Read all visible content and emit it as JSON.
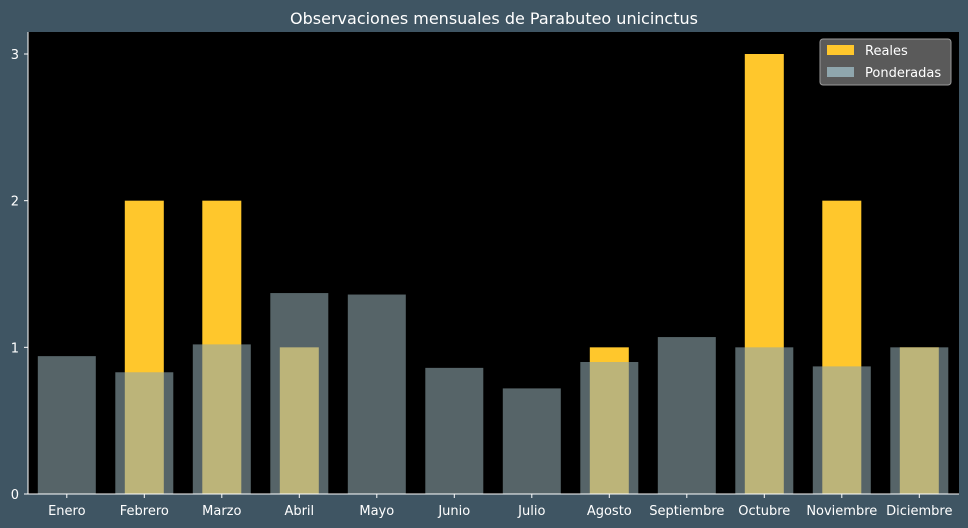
{
  "colors": {
    "background": "#3f5563",
    "plot_background": "#000000",
    "reales": "#ffc72c",
    "ponderadas": "#8fa6ad",
    "text": "#ffffff"
  },
  "chart_data": {
    "type": "bar",
    "title": "Observaciones mensuales de Parabuteo unicinctus",
    "xlabel": "",
    "ylabel": "",
    "ylim": [
      0,
      3.15
    ],
    "yticks": [
      0,
      1,
      2,
      3
    ],
    "grid": false,
    "legend_position": "top-right",
    "categories": [
      "Enero",
      "Febrero",
      "Marzo",
      "Abril",
      "Mayo",
      "Junio",
      "Julio",
      "Agosto",
      "Septiembre",
      "Octubre",
      "Noviembre",
      "Diciembre"
    ],
    "series": [
      {
        "name": "Reales",
        "color": "#ffc72c",
        "values": [
          0,
          2,
          2,
          1,
          0,
          0,
          0,
          1,
          0,
          3,
          2,
          1
        ]
      },
      {
        "name": "Ponderadas",
        "color": "#8fa6ad",
        "values": [
          0.94,
          0.83,
          1.02,
          1.37,
          1.36,
          0.86,
          0.72,
          0.9,
          1.07,
          1.0,
          0.87,
          1.0
        ]
      }
    ]
  }
}
